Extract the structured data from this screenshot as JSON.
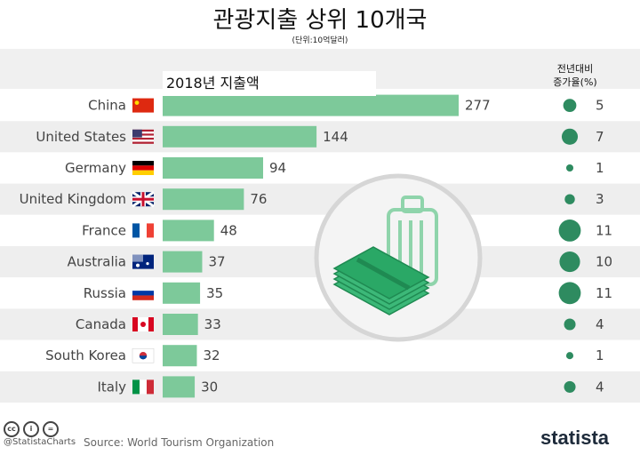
{
  "header": {
    "title": "관광지출 상위 10개국",
    "subtitle": "(단위:10억달러)",
    "value_column": "2018년 지출액",
    "change_column_line1": "전년대비",
    "change_column_line2": "증가율(%)"
  },
  "footer": {
    "cc_icons": [
      "cc",
      "i",
      "="
    ],
    "handle": "@StatistaCharts",
    "source": "Source: World Tourism Organization",
    "brand": "statista"
  },
  "colors": {
    "bar": "#7dc99a",
    "bubble": "#2e8b60",
    "row_alt": "#eeeeee",
    "brand_dark": "#1d2a3a"
  },
  "chart_data": {
    "type": "bar",
    "orientation": "horizontal",
    "categories": [
      "China",
      "United States",
      "Germany",
      "United Kingdom",
      "France",
      "Australia",
      "Russia",
      "Canada",
      "South Korea",
      "Italy"
    ],
    "flag_icons": [
      "china-flag-icon",
      "usa-flag-icon",
      "germany-flag-icon",
      "uk-flag-icon",
      "france-flag-icon",
      "australia-flag-icon",
      "russia-flag-icon",
      "canada-flag-icon",
      "south-korea-flag-icon",
      "italy-flag-icon"
    ],
    "values": [
      277,
      144,
      94,
      76,
      48,
      37,
      35,
      33,
      32,
      30
    ],
    "change_pct": [
      5,
      7,
      1,
      3,
      11,
      10,
      11,
      4,
      1,
      4
    ],
    "title": "관광지출 상위 10개국",
    "xlabel": "2018년 지출액",
    "ylabel": "",
    "xlim": [
      0,
      277
    ],
    "grid": false,
    "legend": "none",
    "decorative_icon": "money-suitcase-icon"
  }
}
